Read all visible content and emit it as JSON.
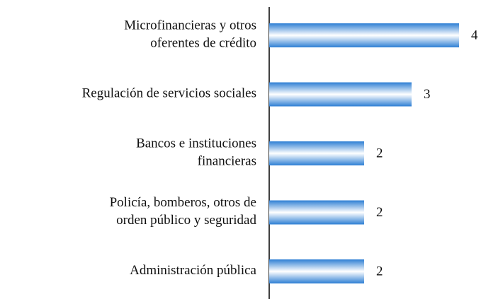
{
  "chart_data": {
    "type": "barh",
    "categories": [
      "Microfinancieras y otros\noferentes de crédito",
      "Regulación de servicios sociales",
      "Bancos e instituciones\nfinancieras",
      "Policía, bomberos, otros de\norden público y seguridad",
      "Administración pública"
    ],
    "values": [
      4,
      3,
      2,
      2,
      2
    ],
    "color": "#2e7fd4",
    "xlim": [
      0,
      4.5
    ]
  }
}
